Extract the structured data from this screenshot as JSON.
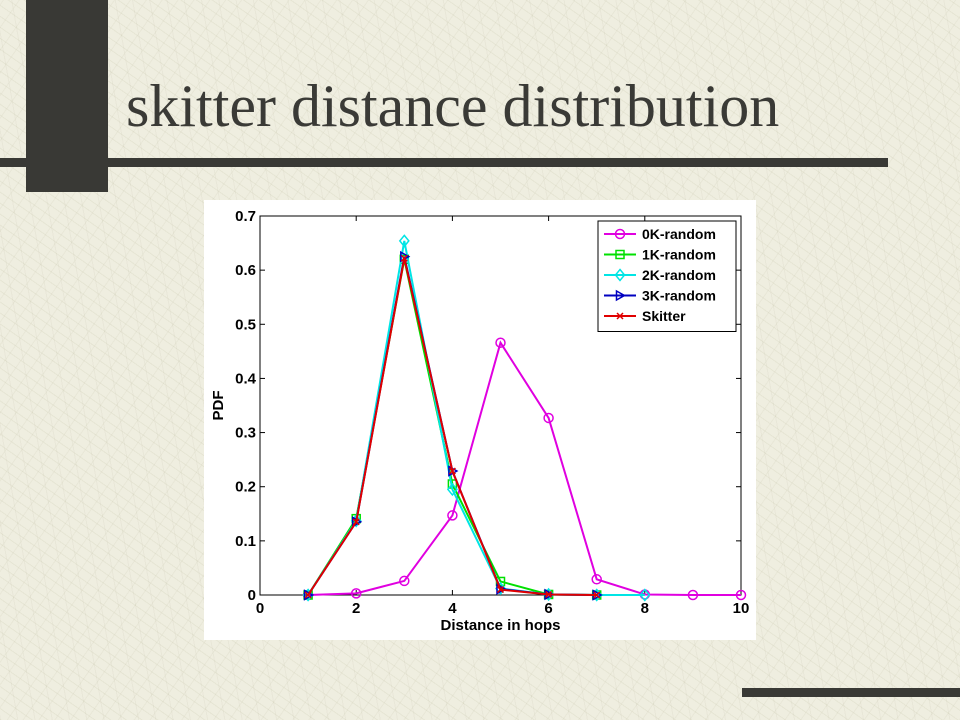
{
  "slide": {
    "title": "skitter distance distribution"
  },
  "colors": {
    "background": "#efeee0",
    "dark_accent": "#393935",
    "title_text": "#3a3a36"
  },
  "chart_data": {
    "type": "line",
    "title": "",
    "xlabel": "Distance in hops",
    "ylabel": "PDF",
    "xlim": [
      0,
      10
    ],
    "ylim": [
      0,
      0.7
    ],
    "xticks": [
      0,
      2,
      4,
      6,
      8,
      10
    ],
    "yticks": [
      0,
      0.1,
      0.2,
      0.3,
      0.4,
      0.5,
      0.6,
      0.7
    ],
    "ytick_labels": [
      "0",
      "0.1",
      "0.2",
      "0.3",
      "0.4",
      "0.5",
      "0.6",
      "0.7"
    ],
    "legend_position": "top-right",
    "grid": false,
    "series": [
      {
        "name": "0K-random",
        "color": "#e000e0",
        "marker": "circle",
        "x": [
          1,
          2,
          3,
          4,
          5,
          6,
          7,
          8,
          9,
          10
        ],
        "y": [
          0,
          0.003,
          0.026,
          0.147,
          0.466,
          0.327,
          0.029,
          0.001,
          0,
          0
        ]
      },
      {
        "name": "1K-random",
        "color": "#00e000",
        "marker": "square",
        "x": [
          1,
          2,
          3,
          4,
          5,
          6,
          7
        ],
        "y": [
          0,
          0.141,
          0.62,
          0.205,
          0.025,
          0.001,
          0
        ]
      },
      {
        "name": "2K-random",
        "color": "#00e5e5",
        "marker": "diamond",
        "x": [
          1,
          2,
          3,
          4,
          5,
          6,
          7,
          8
        ],
        "y": [
          0,
          0.137,
          0.654,
          0.195,
          0.012,
          0.001,
          0,
          0
        ]
      },
      {
        "name": "3K-random",
        "color": "#0000c0",
        "marker": "triangle-right",
        "x": [
          1,
          2,
          3,
          4,
          5,
          6,
          7
        ],
        "y": [
          0,
          0.135,
          0.625,
          0.229,
          0.011,
          0.001,
          0
        ]
      },
      {
        "name": "Skitter",
        "color": "#e00000",
        "marker": "x",
        "x": [
          1,
          2,
          3,
          4,
          5,
          6,
          7
        ],
        "y": [
          0,
          0.135,
          0.622,
          0.229,
          0.01,
          0.001,
          0
        ]
      }
    ]
  }
}
